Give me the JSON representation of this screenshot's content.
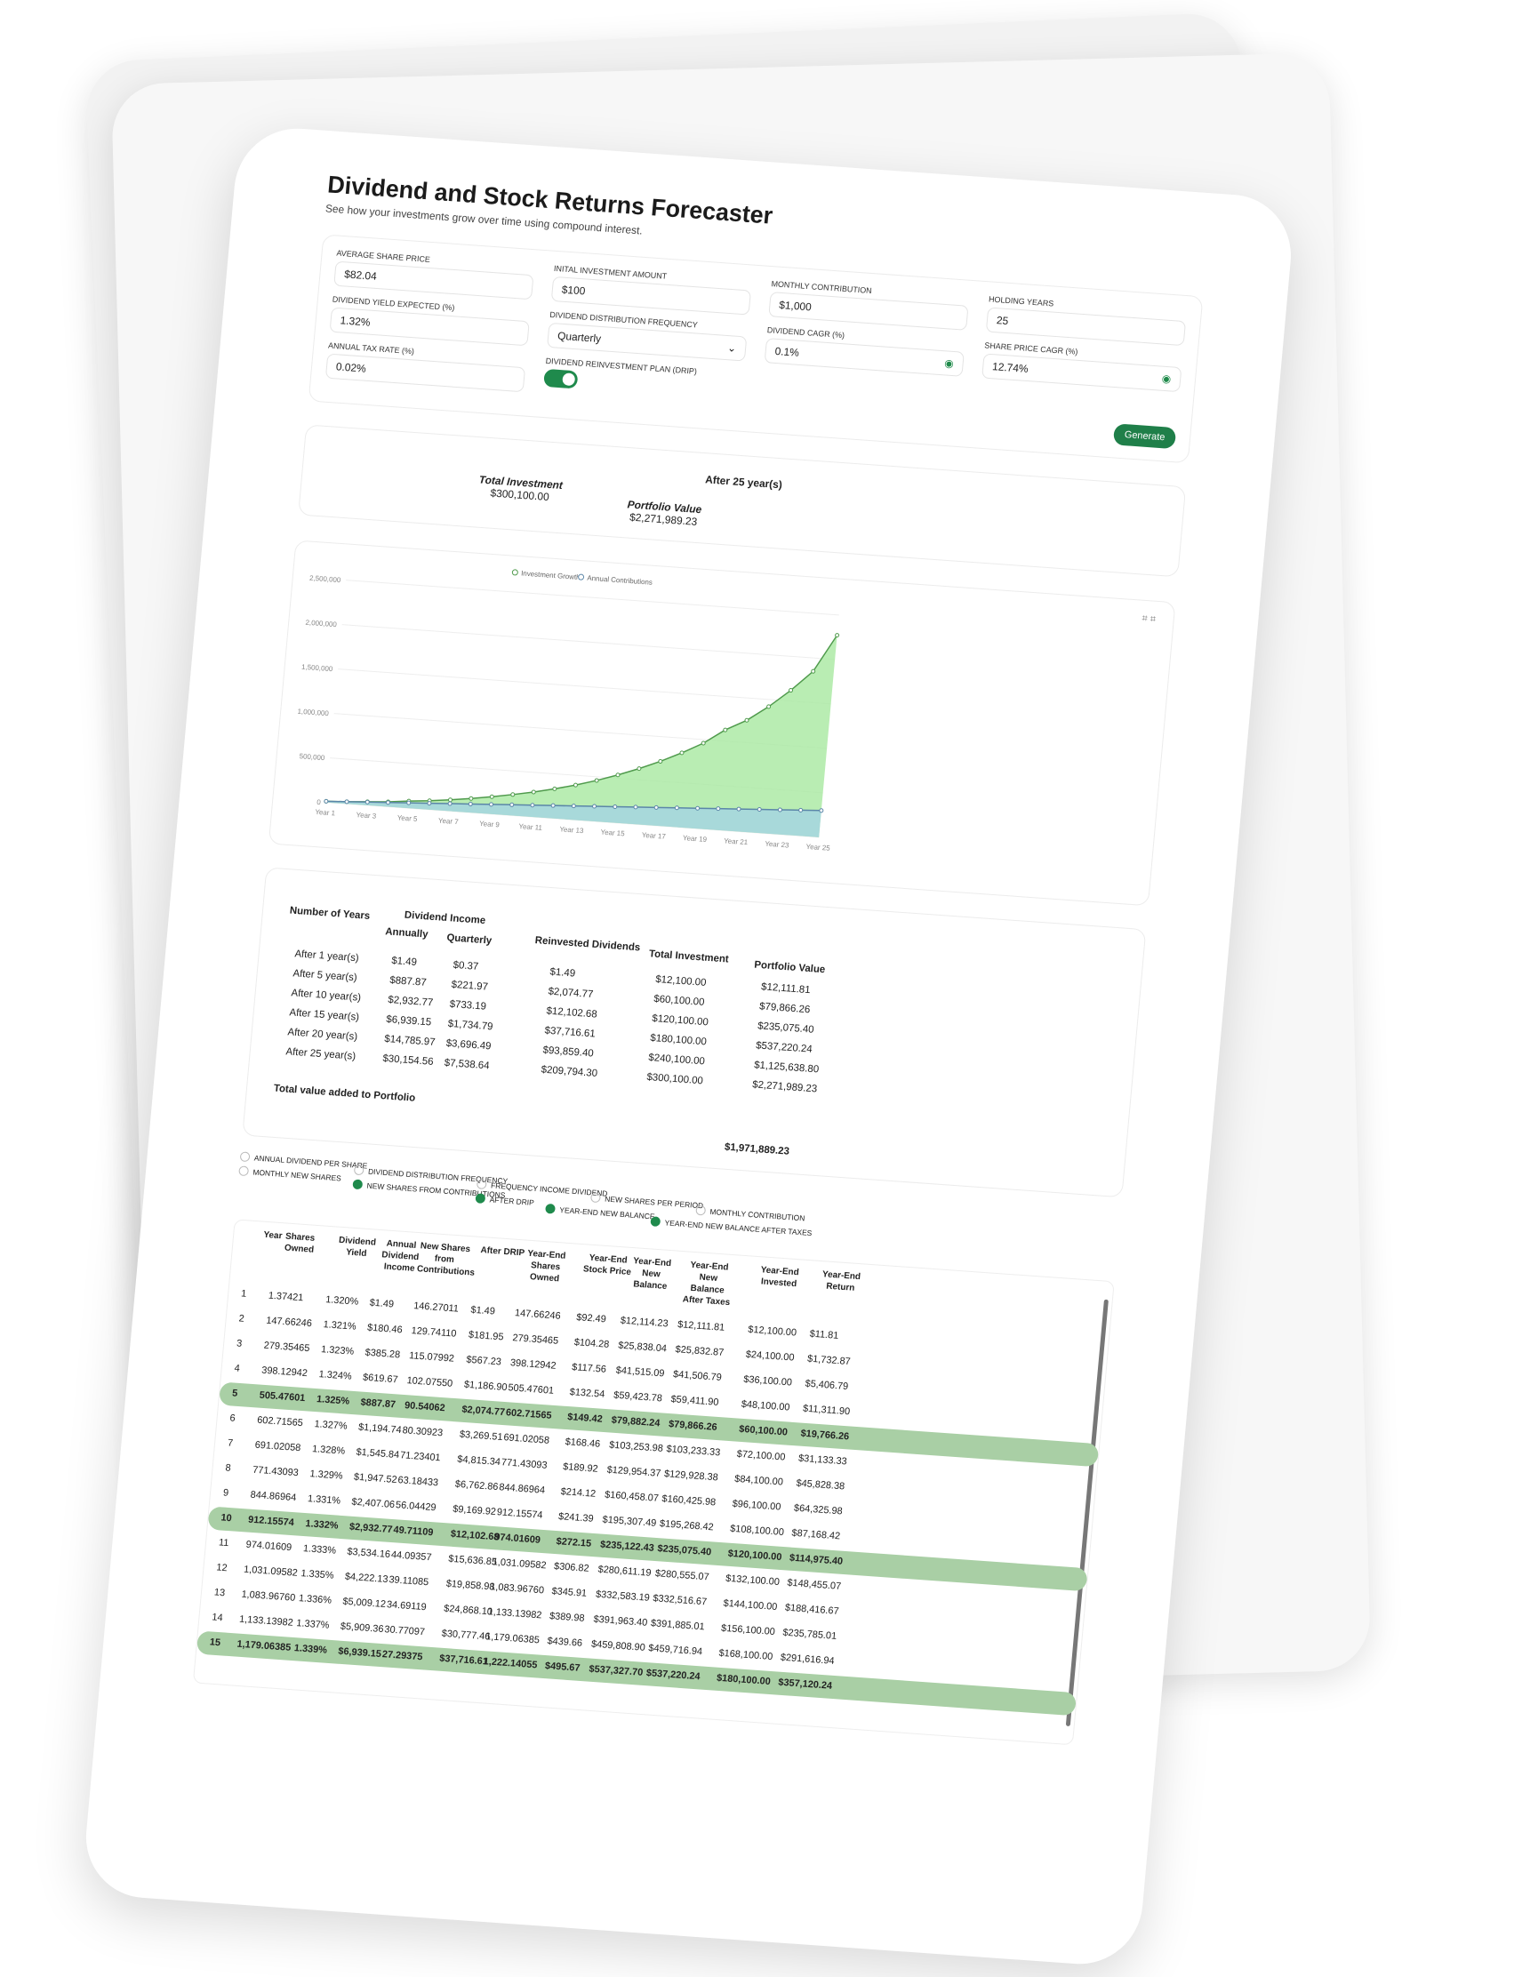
{
  "app": {
    "title": "Dividend and Stock Returns Forecaster",
    "subtitle": "See how your investments grow over time using compound interest."
  },
  "form": {
    "avg_price": {
      "label": "Average Share Price",
      "value": "$82.04"
    },
    "initial": {
      "label": "Inital Investment Amount",
      "value": "$100"
    },
    "monthly": {
      "label": "Monthly Contribution",
      "value": "$1,000"
    },
    "years": {
      "label": "Holding Years",
      "value": "25"
    },
    "yield": {
      "label": "Dividend Yield Expected (%)",
      "value": "1.32%"
    },
    "freq": {
      "label": "Dividend Distribution Frequency",
      "value": "Quarterly"
    },
    "div_cagr": {
      "label": "Dividend CAGR (%)",
      "value": "0.1%"
    },
    "price_cagr": {
      "label": "Share Price CAGR (%)",
      "value": "12.74%"
    },
    "tax": {
      "label": "Annual Tax Rate (%)",
      "value": "0.02%"
    },
    "drip": {
      "label": "Dividend Reinvestment Plan (DRIP)"
    },
    "generate": "Generate"
  },
  "summary": {
    "title": "After 25 year(s)",
    "total_label": "Total Investment",
    "total_value": "$300,100.00",
    "portfolio_label": "Portfolio Value",
    "portfolio_value": "$2,271,989.23"
  },
  "chart_data": {
    "type": "area",
    "legend": [
      "Investment Growth",
      "Annual Contributions"
    ],
    "legend_position": "top",
    "x": [
      "Year 1",
      "Year 2",
      "Year 3",
      "Year 4",
      "Year 5",
      "Year 6",
      "Year 7",
      "Year 8",
      "Year 9",
      "Year 10",
      "Year 11",
      "Year 12",
      "Year 13",
      "Year 14",
      "Year 15",
      "Year 16",
      "Year 17",
      "Year 18",
      "Year 19",
      "Year 20",
      "Year 21",
      "Year 22",
      "Year 23",
      "Year 24",
      "Year 25"
    ],
    "x_ticks": [
      "Year 1",
      "Year 3",
      "Year 5",
      "Year 7",
      "Year 9",
      "Year 11",
      "Year 13",
      "Year 15",
      "Year 17",
      "Year 19",
      "Year 21",
      "Year 23",
      "Year 25"
    ],
    "y_ticks": [
      "0",
      "500,000",
      "1,000,000",
      "1,500,000",
      "2,000,000",
      "2,500,000"
    ],
    "ylim": [
      0,
      2500000
    ],
    "series": [
      {
        "name": "Investment Growth",
        "color": "#4f9a4c",
        "fill": "#a8e8a0",
        "values": [
          12112,
          24000,
          40000,
          55000,
          79866,
          100000,
          127000,
          158000,
          194000,
          235075,
          280000,
          332000,
          391000,
          459000,
          537220,
          625000,
          723000,
          835000,
          960000,
          1125639,
          1250000,
          1420000,
          1620000,
          1850000,
          2271989
        ]
      },
      {
        "name": "Annual Contributions",
        "color": "#5b86a8",
        "fill": "#a6d6de",
        "values": [
          12100,
          24100,
          36100,
          48100,
          60100,
          72100,
          84100,
          96100,
          108100,
          120100,
          132100,
          144100,
          156100,
          168100,
          180100,
          192100,
          204100,
          216100,
          228100,
          240100,
          252100,
          264100,
          276100,
          288100,
          300100
        ]
      }
    ]
  },
  "summary_table": {
    "headers": {
      "years": "Number of Years",
      "dividend_income": "Dividend Income",
      "annually": "Annually",
      "quarterly": "Quarterly",
      "reinvested": "Reinvested Dividends",
      "total_investment": "Total Investment",
      "portfolio_value": "Portfolio Value"
    },
    "rows": [
      [
        "After 1 year(s)",
        "$1.49",
        "$0.37",
        "$1.49",
        "$12,100.00",
        "$12,111.81"
      ],
      [
        "After 5 year(s)",
        "$887.87",
        "$221.97",
        "$2,074.77",
        "$60,100.00",
        "$79,866.26"
      ],
      [
        "After 10 year(s)",
        "$2,932.77",
        "$733.19",
        "$12,102.68",
        "$120,100.00",
        "$235,075.40"
      ],
      [
        "After 15 year(s)",
        "$6,939.15",
        "$1,734.79",
        "$37,716.61",
        "$180,100.00",
        "$537,220.24"
      ],
      [
        "After 20 year(s)",
        "$14,785.97",
        "$3,696.49",
        "$93,859.40",
        "$240,100.00",
        "$1,125,638.80"
      ],
      [
        "After 25 year(s)",
        "$30,154.56",
        "$7,538.64",
        "$209,794.30",
        "$300,100.00",
        "$2,271,989.23"
      ]
    ],
    "total_label": "Total value added to Portfolio",
    "total_value": "$1,971,889.23"
  },
  "columns_toggle": [
    {
      "label": "Annual Dividend Per Share",
      "on": false
    },
    {
      "label": "Monthly New Shares",
      "on": false
    },
    {
      "label": "Dividend Distribution Frequency",
      "on": false
    },
    {
      "label": "New Shares From Contributions",
      "on": true
    },
    {
      "label": "Frequency Income Dividend",
      "on": false
    },
    {
      "label": "After DRIP",
      "on": true
    },
    {
      "label": "New Shares Per Period",
      "on": false
    },
    {
      "label": "Year-End New Balance",
      "on": true
    },
    {
      "label": "Monthly Contribution",
      "on": false
    },
    {
      "label": "Year-End New Balance After Taxes",
      "on": true
    }
  ],
  "grid": {
    "headers": [
      "Year",
      "Shares Owned",
      "Dividend Yield",
      "Annual Dividend Income",
      "New Shares from Contributions",
      "After DRIP",
      "Year-End Shares Owned",
      "Year-End Stock Price",
      "Year-End New Balance",
      "Year-End New Balance After Taxes",
      "Year-End Invested",
      "Year-End Return"
    ],
    "rows": [
      [
        "1",
        "1.37421",
        "1.320%",
        "$1.49",
        "146.27011",
        "$1.49",
        "147.66246",
        "$92.49",
        "$12,114.23",
        "$12,111.81",
        "$12,100.00",
        "$11.81"
      ],
      [
        "2",
        "147.66246",
        "1.321%",
        "$180.46",
        "129.74110",
        "$181.95",
        "279.35465",
        "$104.28",
        "$25,838.04",
        "$25,832.87",
        "$24,100.00",
        "$1,732.87"
      ],
      [
        "3",
        "279.35465",
        "1.323%",
        "$385.28",
        "115.07992",
        "$567.23",
        "398.12942",
        "$117.56",
        "$41,515.09",
        "$41,506.79",
        "$36,100.00",
        "$5,406.79"
      ],
      [
        "4",
        "398.12942",
        "1.324%",
        "$619.67",
        "102.07550",
        "$1,186.90",
        "505.47601",
        "$132.54",
        "$59,423.78",
        "$59,411.90",
        "$48,100.00",
        "$11,311.90"
      ],
      [
        "5",
        "505.47601",
        "1.325%",
        "$887.87",
        "90.54062",
        "$2,074.77",
        "602.71565",
        "$149.42",
        "$79,882.24",
        "$79,866.26",
        "$60,100.00",
        "$19,766.26"
      ],
      [
        "6",
        "602.71565",
        "1.327%",
        "$1,194.74",
        "80.30923",
        "$3,269.51",
        "691.02058",
        "$168.46",
        "$103,253.98",
        "$103,233.33",
        "$72,100.00",
        "$31,133.33"
      ],
      [
        "7",
        "691.02058",
        "1.328%",
        "$1,545.84",
        "71.23401",
        "$4,815.34",
        "771.43093",
        "$189.92",
        "$129,954.37",
        "$129,928.38",
        "$84,100.00",
        "$45,828.38"
      ],
      [
        "8",
        "771.43093",
        "1.329%",
        "$1,947.52",
        "63.18433",
        "$6,762.86",
        "844.86964",
        "$214.12",
        "$160,458.07",
        "$160,425.98",
        "$96,100.00",
        "$64,325.98"
      ],
      [
        "9",
        "844.86964",
        "1.331%",
        "$2,407.06",
        "56.04429",
        "$9,169.92",
        "912.15574",
        "$241.39",
        "$195,307.49",
        "$195,268.42",
        "$108,100.00",
        "$87,168.42"
      ],
      [
        "10",
        "912.15574",
        "1.332%",
        "$2,932.77",
        "49.71109",
        "$12,102.68",
        "974.01609",
        "$272.15",
        "$235,122.43",
        "$235,075.40",
        "$120,100.00",
        "$114,975.40"
      ],
      [
        "11",
        "974.01609",
        "1.333%",
        "$3,534.16",
        "44.09357",
        "$15,636.85",
        "1,031.09582",
        "$306.82",
        "$280,611.19",
        "$280,555.07",
        "$132,100.00",
        "$148,455.07"
      ],
      [
        "12",
        "1,031.09582",
        "1.335%",
        "$4,222.13",
        "39.11085",
        "$19,858.98",
        "1,083.96760",
        "$345.91",
        "$332,583.19",
        "$332,516.67",
        "$144,100.00",
        "$188,416.67"
      ],
      [
        "13",
        "1,083.96760",
        "1.336%",
        "$5,009.12",
        "34.69119",
        "$24,868.10",
        "1,133.13982",
        "$389.98",
        "$391,963.40",
        "$391,885.01",
        "$156,100.00",
        "$235,785.01"
      ],
      [
        "14",
        "1,133.13982",
        "1.337%",
        "$5,909.36",
        "30.77097",
        "$30,777.46",
        "1,179.06385",
        "$439.66",
        "$459,808.90",
        "$459,716.94",
        "$168,100.00",
        "$291,616.94"
      ],
      [
        "15",
        "1,179.06385",
        "1.339%",
        "$6,939.15",
        "27.29375",
        "$37,716.61",
        "1,222.14055",
        "$495.67",
        "$537,327.70",
        "$537,220.24",
        "$180,100.00",
        "$357,120.24"
      ]
    ]
  }
}
